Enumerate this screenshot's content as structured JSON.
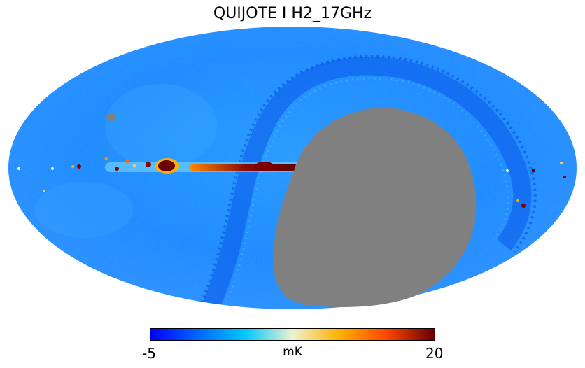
{
  "map": {
    "title": "QUIJOTE I H2_17GHz",
    "projection": "mollweide",
    "mask_color": "#808080",
    "background_color": "#1f8fff"
  },
  "colorbar": {
    "min_label": "-5",
    "max_label": "20",
    "unit_label": "mK",
    "min_value": -5,
    "max_value": 20,
    "colormap": "planck",
    "stops": [
      "#0000ff",
      "#0066ff",
      "#00c8ff",
      "#eef2d0",
      "#ffb000",
      "#ff4400",
      "#640000"
    ]
  }
}
